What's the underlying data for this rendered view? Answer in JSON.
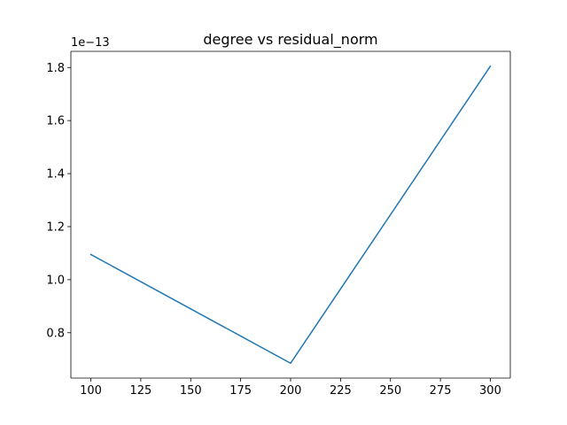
{
  "chart_data": {
    "type": "line",
    "title": "degree vs residual_norm",
    "xlabel": "",
    "ylabel": "",
    "y_offset_label": "1e−13",
    "x": [
      100,
      200,
      300
    ],
    "series": [
      {
        "values": [
          1.095e-13,
          6.85e-14,
          1.805e-13
        ],
        "color": "#1f77b4"
      }
    ],
    "xlim": [
      90,
      310
    ],
    "ylim": [
      6.29e-14,
      1.861e-13
    ],
    "x_ticks": [
      100,
      125,
      150,
      175,
      200,
      225,
      250,
      275,
      300
    ],
    "x_tick_labels": [
      "100",
      "125",
      "150",
      "175",
      "200",
      "225",
      "250",
      "275",
      "300"
    ],
    "y_ticks": [
      8e-14,
      1e-13,
      1.2e-13,
      1.4e-13,
      1.6e-13,
      1.8e-13
    ],
    "y_tick_labels": [
      "0.8",
      "1.0",
      "1.2",
      "1.4",
      "1.6",
      "1.8"
    ],
    "grid": false,
    "legend": "none"
  }
}
